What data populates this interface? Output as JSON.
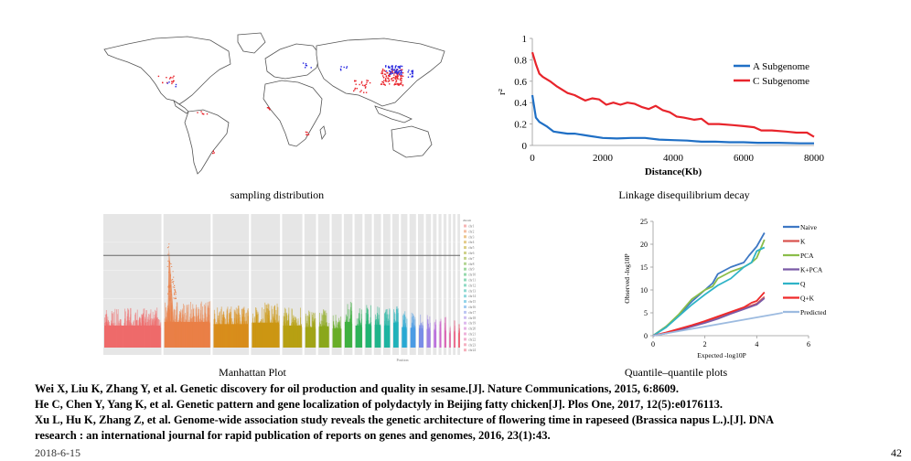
{
  "slide": {
    "date": "2018-6-15",
    "page_number": "42"
  },
  "figures": {
    "map": {
      "caption": "sampling distribution",
      "marker_colors": [
        "#e8242b",
        "#2a2ae0"
      ]
    },
    "ld": {
      "caption": "Linkage disequilibrium decay"
    },
    "manhattan": {
      "caption": "Manhattan Plot",
      "x_axis_label": "Position",
      "legend_title": "chrom"
    },
    "qq": {
      "caption": "Quantile–quantile plots"
    }
  },
  "references": [
    "Wei X, Liu K, Zhang Y, et al. Genetic discovery for oil production and quality in sesame.[J]. Nature Communications, 2015, 6:8609.",
    "He C, Chen Y, Yang K, et al. Genetic pattern and gene localization of polydactyly in Beijing fatty chicken[J]. Plos One, 2017, 12(5):e0176113.",
    "Xu L, Hu K, Zhang Z, et al. Genome-wide association study reveals the genetic architecture of flowering time in rapeseed (Brassica napus L.).[J]. DNA",
    "research : an international journal for rapid publication of reports on genes and genomes, 2016, 23(1):43."
  ],
  "chart_data": [
    {
      "type": "line",
      "title": "Linkage disequilibrium decay",
      "xlabel": "Distance(Kb)",
      "ylabel": "r²",
      "xlim": [
        0,
        8000
      ],
      "ylim": [
        0,
        1
      ],
      "x_ticks": [
        "0",
        "2000",
        "4000",
        "6000",
        "8000"
      ],
      "y_ticks": [
        "0",
        "0.2",
        "0.4",
        "0.6",
        "0.8",
        "1"
      ],
      "legend_position": "top-right",
      "grid": false,
      "series": [
        {
          "name": "A Subgenome",
          "color": "#1f6fc5",
          "x": [
            0,
            100,
            200,
            400,
            600,
            800,
            1000,
            1200,
            1600,
            2000,
            2400,
            2800,
            3200,
            3600,
            4000,
            4400,
            4800,
            5200,
            5600,
            6000,
            6400,
            7000,
            7600,
            8000
          ],
          "y": [
            0.47,
            0.26,
            0.22,
            0.18,
            0.13,
            0.12,
            0.11,
            0.11,
            0.09,
            0.07,
            0.065,
            0.07,
            0.07,
            0.055,
            0.05,
            0.045,
            0.035,
            0.035,
            0.03,
            0.03,
            0.025,
            0.025,
            0.02,
            0.02
          ]
        },
        {
          "name": "C Subgenome",
          "color": "#e8242b",
          "x": [
            0,
            100,
            200,
            300,
            500,
            700,
            1000,
            1200,
            1500,
            1700,
            1900,
            2100,
            2300,
            2500,
            2700,
            2900,
            3100,
            3300,
            3500,
            3700,
            3900,
            4100,
            4300,
            4600,
            4800,
            5000,
            5300,
            5700,
            6000,
            6300,
            6500,
            6800,
            7200,
            7500,
            7800,
            8000
          ],
          "y": [
            0.87,
            0.76,
            0.67,
            0.64,
            0.6,
            0.55,
            0.49,
            0.47,
            0.42,
            0.44,
            0.43,
            0.38,
            0.4,
            0.38,
            0.4,
            0.39,
            0.36,
            0.34,
            0.37,
            0.33,
            0.31,
            0.27,
            0.26,
            0.24,
            0.25,
            0.2,
            0.2,
            0.19,
            0.18,
            0.17,
            0.14,
            0.14,
            0.13,
            0.12,
            0.12,
            0.08
          ]
        }
      ]
    },
    {
      "type": "line",
      "title": "Quantile–quantile plots",
      "xlabel": "Expected -log10P",
      "ylabel": "Observed -log10P",
      "xlim": [
        0,
        6
      ],
      "ylim": [
        0,
        25
      ],
      "x_ticks": [
        "0",
        "2",
        "4",
        "6"
      ],
      "y_ticks": [
        "0",
        "5",
        "10",
        "15",
        "20",
        "25"
      ],
      "legend_position": "right",
      "grid": false,
      "series": [
        {
          "name": "Naive",
          "color": "#3e78c4",
          "x": [
            0,
            0.5,
            1,
            1.5,
            2,
            2.3,
            2.5,
            3,
            3.5,
            3.7,
            4,
            4.3
          ],
          "y": [
            0,
            2,
            4.5,
            7.5,
            10,
            11.5,
            13.5,
            15,
            16,
            17.5,
            19.5,
            22.5
          ]
        },
        {
          "name": "K",
          "color": "#d9534f",
          "x": [
            0,
            0.5,
            1,
            1.5,
            2,
            2.5,
            3,
            3.5,
            4,
            4.3
          ],
          "y": [
            0,
            0.6,
            1.4,
            2.2,
            3,
            4,
            5,
            6,
            7,
            8.5
          ]
        },
        {
          "name": "PCA",
          "color": "#8bbd4a",
          "x": [
            0,
            0.5,
            1,
            1.5,
            2,
            2.3,
            2.5,
            3,
            3.5,
            3.8,
            4,
            4.3
          ],
          "y": [
            0,
            2,
            4.7,
            8,
            10,
            10.8,
            12.5,
            14,
            15,
            16,
            17,
            21
          ]
        },
        {
          "name": "K+PCA",
          "color": "#7b5aa6",
          "x": [
            0,
            0.5,
            1,
            1.5,
            2,
            2.5,
            3,
            3.5,
            4,
            4.3
          ],
          "y": [
            0,
            0.5,
            1.2,
            2,
            2.8,
            3.7,
            4.8,
            5.8,
            6.8,
            8.2
          ]
        },
        {
          "name": "Q",
          "color": "#2fb3c7",
          "x": [
            0,
            0.5,
            1,
            1.5,
            2,
            2.5,
            3,
            3.5,
            3.8,
            4,
            4.3
          ],
          "y": [
            0,
            1.8,
            4.3,
            6.8,
            9,
            11,
            12.5,
            15,
            16,
            18.5,
            19.3
          ]
        },
        {
          "name": "Q+K",
          "color": "#ef2a2a",
          "x": [
            0,
            0.5,
            1,
            1.5,
            2,
            2.5,
            3,
            3.5,
            3.8,
            4,
            4.3
          ],
          "y": [
            0,
            0.7,
            1.5,
            2.3,
            3.2,
            4.2,
            5.2,
            6.2,
            7.2,
            7.6,
            9.5
          ]
        },
        {
          "name": "Predicted",
          "color": "#9dbbe0",
          "x": [
            0,
            5
          ],
          "y": [
            0,
            5
          ]
        }
      ]
    },
    {
      "type": "scatter",
      "title": "Manhattan Plot",
      "xlabel": "Position",
      "ylabel": "",
      "legend_title": "chrom",
      "legend_position": "right",
      "grid": true,
      "ylim": [
        0,
        10
      ],
      "threshold": 6.9,
      "series": [
        {
          "name": "chr1",
          "color": "#ef6b6b",
          "relative_width": 8,
          "typical_peak": 3.0,
          "max_peak": 3.6
        },
        {
          "name": "chr2",
          "color": "#e97f47",
          "relative_width": 6.5,
          "typical_peak": 3.5,
          "max_peak": 8.8
        },
        {
          "name": "chr3",
          "color": "#d88e1c",
          "relative_width": 5,
          "typical_peak": 3.2,
          "max_peak": 3.8
        },
        {
          "name": "chr4",
          "color": "#cc9712",
          "relative_width": 4,
          "typical_peak": 3.4,
          "max_peak": 3.9
        },
        {
          "name": "chr5",
          "color": "#b8a012",
          "relative_width": 2.8,
          "typical_peak": 3.0,
          "max_peak": 3.4
        },
        {
          "name": "chr6",
          "color": "#a2a418",
          "relative_width": 1.6,
          "typical_peak": 2.8,
          "max_peak": 3.1
        },
        {
          "name": "chr7",
          "color": "#8aa81c",
          "relative_width": 1.6,
          "typical_peak": 2.9,
          "max_peak": 3.2
        },
        {
          "name": "chr8",
          "color": "#6aad2a",
          "relative_width": 1.4,
          "typical_peak": 2.6,
          "max_peak": 3.0
        },
        {
          "name": "chr9",
          "color": "#3fb042",
          "relative_width": 1.2,
          "typical_peak": 3.5,
          "max_peak": 3.8
        },
        {
          "name": "chr10",
          "color": "#2db35a",
          "relative_width": 1.1,
          "typical_peak": 3.0,
          "max_peak": 3.2
        },
        {
          "name": "chr11",
          "color": "#22b473",
          "relative_width": 1.0,
          "typical_peak": 3.2,
          "max_peak": 3.5
        },
        {
          "name": "chr12",
          "color": "#20b58c",
          "relative_width": 1.0,
          "typical_peak": 3.1,
          "max_peak": 3.6
        },
        {
          "name": "chr13",
          "color": "#1fb4a3",
          "relative_width": 1.0,
          "typical_peak": 3.0,
          "max_peak": 3.3
        },
        {
          "name": "chr14",
          "color": "#21b2ba",
          "relative_width": 0.9,
          "typical_peak": 3.4,
          "max_peak": 3.8
        },
        {
          "name": "chr15",
          "color": "#2aa9d3",
          "relative_width": 0.9,
          "typical_peak": 2.8,
          "max_peak": 3.0
        },
        {
          "name": "chr16",
          "color": "#4a9be4",
          "relative_width": 0.9,
          "typical_peak": 2.7,
          "max_peak": 3.0
        },
        {
          "name": "chr17",
          "color": "#7a8ee8",
          "relative_width": 0.8,
          "typical_peak": 2.6,
          "max_peak": 2.9
        },
        {
          "name": "chr18",
          "color": "#9f80e6",
          "relative_width": 0.7,
          "typical_peak": 2.5,
          "max_peak": 2.8
        },
        {
          "name": "chr19",
          "color": "#bb72de",
          "relative_width": 0.5,
          "typical_peak": 2.4,
          "max_peak": 2.7
        },
        {
          "name": "chr20",
          "color": "#d068cc",
          "relative_width": 0.4,
          "typical_peak": 2.2,
          "max_peak": 2.6
        },
        {
          "name": "chr21",
          "color": "#dd64b6",
          "relative_width": 0.4,
          "typical_peak": 2.3,
          "max_peak": 2.7
        },
        {
          "name": "chr22",
          "color": "#e6629d",
          "relative_width": 0.35,
          "typical_peak": 2.0,
          "max_peak": 2.4
        },
        {
          "name": "chr23",
          "color": "#ec6386",
          "relative_width": 0.35,
          "typical_peak": 2.2,
          "max_peak": 2.6
        },
        {
          "name": "chr24",
          "color": "#ee6479",
          "relative_width": 0.35,
          "typical_peak": 2.0,
          "max_peak": 2.3
        }
      ]
    }
  ]
}
